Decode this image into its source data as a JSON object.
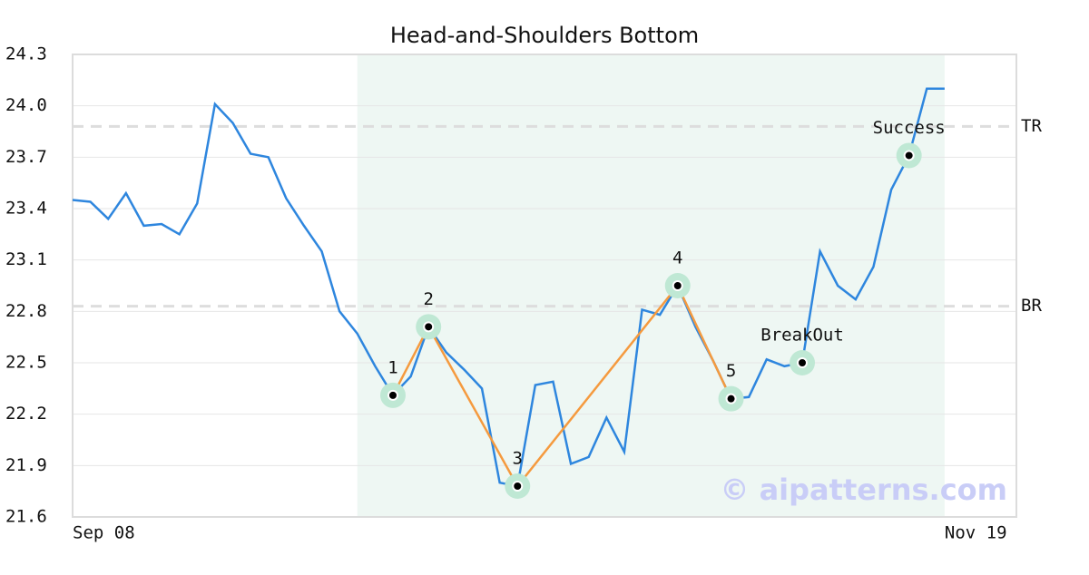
{
  "chart_data": {
    "type": "line",
    "title": "Head-and-Shoulders Bottom",
    "categories": [
      "Sep 08",
      null,
      null,
      null,
      null,
      null,
      null,
      null,
      null,
      null,
      null,
      null,
      null,
      null,
      null,
      null,
      null,
      null,
      null,
      null,
      null,
      null,
      null,
      null,
      null,
      null,
      null,
      null,
      null,
      null,
      null,
      null,
      null,
      null,
      null,
      null,
      null,
      null,
      null,
      null,
      null,
      null,
      null,
      null,
      null,
      null,
      null,
      null,
      null,
      "Nov 19"
    ],
    "color": "#2e86de",
    "values": [
      23.45,
      23.44,
      23.34,
      23.49,
      23.3,
      23.31,
      23.25,
      23.43,
      24.01,
      23.9,
      23.72,
      23.7,
      23.46,
      23.3,
      23.15,
      22.8,
      22.67,
      22.48,
      22.31,
      22.42,
      22.71,
      22.56,
      22.46,
      22.35,
      21.8,
      21.78,
      22.37,
      22.39,
      21.91,
      21.95,
      22.18,
      21.98,
      22.81,
      22.78,
      22.95,
      22.71,
      22.51,
      22.29,
      22.3,
      22.52,
      22.48,
      22.5,
      23.15,
      22.95,
      22.87,
      23.06,
      23.51,
      23.71,
      24.1,
      24.1
    ],
    "ylim": [
      21.6,
      24.3
    ],
    "yticks": [
      21.6,
      21.9,
      22.2,
      22.5,
      22.8,
      23.1,
      23.4,
      23.7,
      {
        "value": 24.0,
        "label": "24.0"
      },
      24.3
    ],
    "grid": true,
    "highlight_range": [
      16,
      49
    ],
    "highlight_color": "#eef7f3",
    "pattern_color": "#f59a3e",
    "marker_color": "#bfe8d4",
    "pattern_points": [
      {
        "x": 18,
        "value": 22.31,
        "label": "1"
      },
      {
        "x": 20,
        "value": 22.71,
        "label": "2"
      },
      {
        "x": 25,
        "value": 21.78,
        "label": "3"
      },
      {
        "x": 34,
        "value": 22.95,
        "label": "4"
      },
      {
        "x": 37,
        "value": 22.29,
        "label": "5"
      },
      {
        "x": 41,
        "value": 22.5,
        "label": "BreakOut"
      },
      {
        "x": 47,
        "value": 23.71,
        "label": "Success"
      }
    ],
    "pattern_line_count": 5,
    "levels": [
      {
        "label": "TR",
        "value": 23.88
      },
      {
        "label": "BR",
        "value": 22.83
      }
    ],
    "watermark": "© aipatterns.com"
  }
}
